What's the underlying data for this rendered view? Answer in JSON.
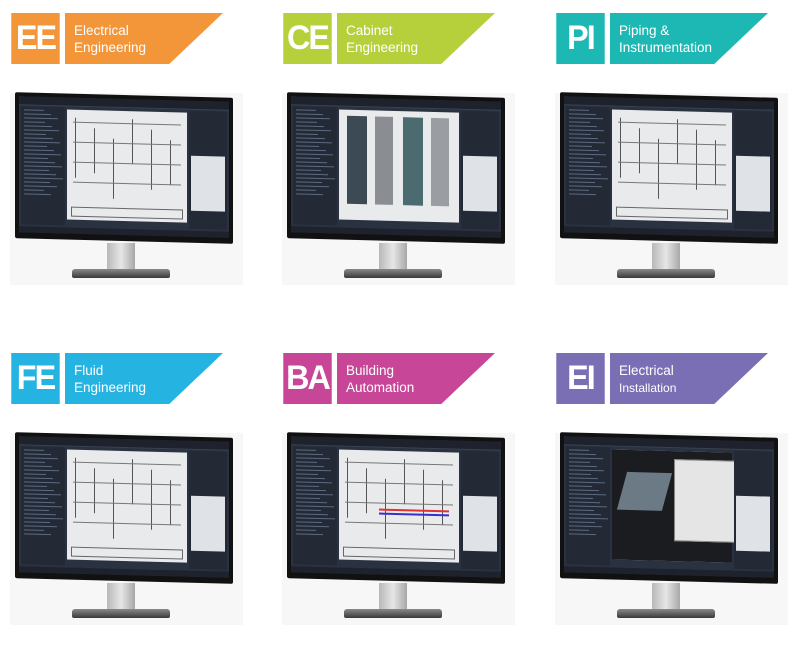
{
  "modules": [
    {
      "abbr": "EE",
      "line1": "Electrical",
      "line2": "Engineering",
      "color": "#f39539",
      "screen": "schematic"
    },
    {
      "abbr": "CE",
      "line1": "Cabinet",
      "line2": "Engineering",
      "color": "#b6d03b",
      "screen": "cabinet"
    },
    {
      "abbr": "PI",
      "line1": "Piping &",
      "line2": "Instrumentation",
      "color": "#1db8b3",
      "screen": "piping"
    },
    {
      "abbr": "FE",
      "line1": "Fluid",
      "line2": "Engineering",
      "color": "#25b3e2",
      "screen": "fluid"
    },
    {
      "abbr": "BA",
      "line1": "Building",
      "line2": "Automation",
      "color": "#c74697",
      "screen": "automation"
    },
    {
      "abbr": "EI",
      "line1": "Electrical",
      "line2": "Installation",
      "color": "#7a6fb4",
      "screen": "3d-installation"
    }
  ]
}
